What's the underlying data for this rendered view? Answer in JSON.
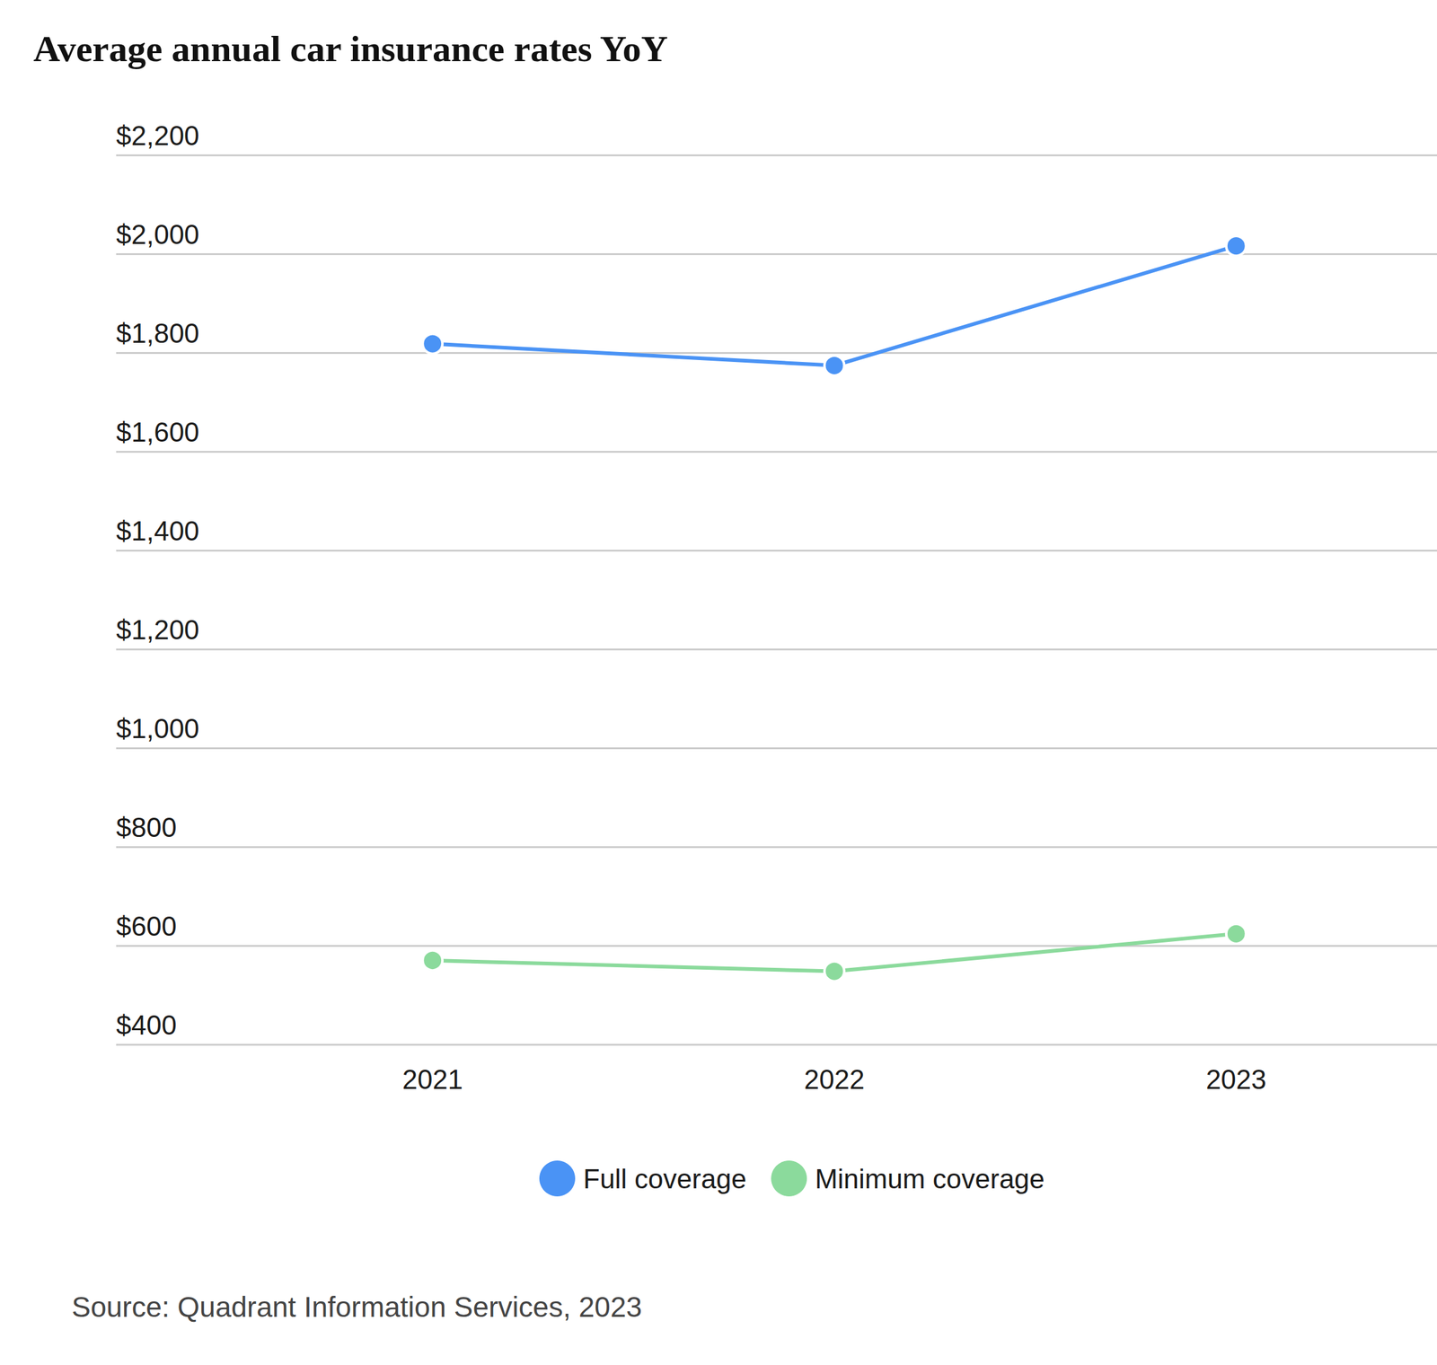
{
  "chart_data": {
    "type": "line",
    "title": "Average annual car insurance rates YoY",
    "source": "Source: Quadrant Information Services, 2023",
    "categories": [
      "2021",
      "2022",
      "2023"
    ],
    "series": [
      {
        "name": "Full coverage",
        "color": "#4a93f5",
        "values": [
          1818,
          1774,
          2016
        ]
      },
      {
        "name": "Minimum coverage",
        "color": "#8bda9c",
        "values": [
          570,
          548,
          624
        ]
      }
    ],
    "ylim": [
      400,
      2200
    ],
    "yticks": [
      {
        "value": 400,
        "label": "$400"
      },
      {
        "value": 600,
        "label": "$600"
      },
      {
        "value": 800,
        "label": "$800"
      },
      {
        "value": 1000,
        "label": "$1,000"
      },
      {
        "value": 1200,
        "label": "$1,200"
      },
      {
        "value": 1400,
        "label": "$1,400"
      },
      {
        "value": 1600,
        "label": "$1,600"
      },
      {
        "value": 1800,
        "label": "$1,800"
      },
      {
        "value": 2000,
        "label": "$2,000"
      },
      {
        "value": 2200,
        "label": "$2,200"
      }
    ],
    "grid": true,
    "legend": "bottom",
    "marker": "circle"
  }
}
